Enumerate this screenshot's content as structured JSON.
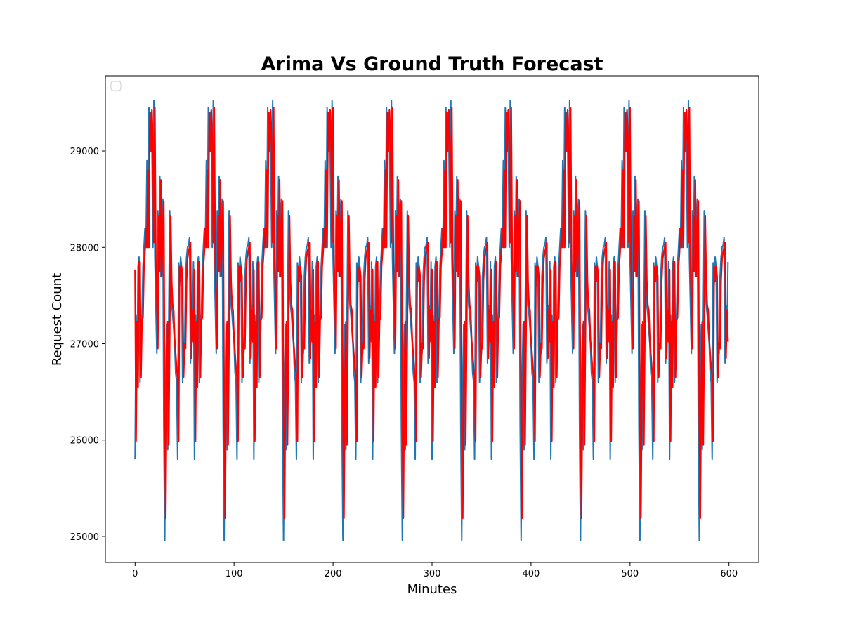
{
  "chart_data": {
    "type": "line",
    "title": "Arima Vs Ground Truth Forecast",
    "xlabel": "Minutes",
    "ylabel": "Request Count",
    "xlim": [
      -30,
      630
    ],
    "ylim": [
      24730,
      29780
    ],
    "x_ticks": [
      0,
      100,
      200,
      300,
      400,
      500,
      600
    ],
    "y_ticks": [
      25000,
      26000,
      27000,
      28000,
      29000
    ],
    "x_tick_labels": [
      "0",
      "100",
      "200",
      "300",
      "400",
      "500",
      "600"
    ],
    "y_tick_labels": [
      "25000",
      "26000",
      "27000",
      "28000",
      "29000"
    ],
    "grid": false,
    "legend": {
      "placement": "top-left",
      "entries": []
    },
    "period_minutes": 60,
    "x_range": [
      0,
      599
    ],
    "series": [
      {
        "color": "#1f77b4",
        "pattern_x": [
          0,
          1,
          2,
          3,
          4,
          5,
          6,
          7,
          8,
          9,
          10,
          11,
          12,
          13,
          14,
          15,
          16,
          17,
          18,
          19,
          20,
          21,
          22,
          23,
          24,
          25,
          26,
          27,
          28,
          29,
          30,
          31,
          32,
          33,
          34,
          35,
          36,
          37,
          38,
          39,
          40,
          41,
          42,
          43,
          44,
          45,
          46,
          47,
          48,
          49,
          50,
          51,
          52,
          53,
          54,
          55,
          56,
          57,
          58,
          59
        ],
        "pattern_values": [
          25800,
          27300,
          26600,
          27800,
          27900,
          26600,
          27200,
          27300,
          27800,
          28000,
          28200,
          28000,
          28900,
          28000,
          29450,
          29000,
          29400,
          29100,
          28000,
          29520,
          27900,
          27400,
          26900,
          28380,
          27800,
          28740,
          27700,
          28300,
          28500,
          26150,
          24960,
          26600,
          27200,
          25900,
          27200,
          28380,
          27600,
          27400,
          27300,
          27150,
          27000,
          26700,
          26600,
          25800,
          27840,
          27600,
          27900,
          27800,
          26600,
          27000,
          26900,
          27700,
          27900,
          28000,
          28020,
          28100,
          26800,
          27400,
          27100,
          27850
        ]
      },
      {
        "color": "#ff0000",
        "pattern_x": [
          0,
          1,
          2,
          3,
          4,
          5,
          6,
          7,
          8,
          9,
          10,
          11,
          12,
          13,
          14,
          15,
          16,
          17,
          18,
          19,
          20,
          21,
          22,
          23,
          24,
          25,
          26,
          27,
          28,
          29,
          30,
          31,
          32,
          33,
          34,
          35,
          36,
          37,
          38,
          39,
          40,
          41,
          42,
          43,
          44,
          45,
          46,
          47,
          48,
          49,
          50,
          51,
          52,
          53,
          54,
          55,
          56,
          57,
          58,
          59
        ],
        "pattern_values": [
          27770,
          25990,
          27230,
          26550,
          27850,
          27850,
          26650,
          27250,
          27270,
          27800,
          27950,
          28200,
          28000,
          28800,
          28000,
          29400,
          29000,
          29430,
          29100,
          28050,
          29450,
          27850,
          27450,
          26950,
          28330,
          27750,
          28700,
          27700,
          28250,
          28480,
          26300,
          25190,
          26600,
          27230,
          25950,
          27100,
          28330,
          27650,
          27400,
          27350,
          27050,
          26900,
          26750,
          26650,
          25990,
          27800,
          27650,
          27800,
          27700,
          26650,
          27000,
          26950,
          27650,
          27880,
          27950,
          28000,
          28050,
          26850,
          27350,
          27020
        ]
      }
    ]
  }
}
